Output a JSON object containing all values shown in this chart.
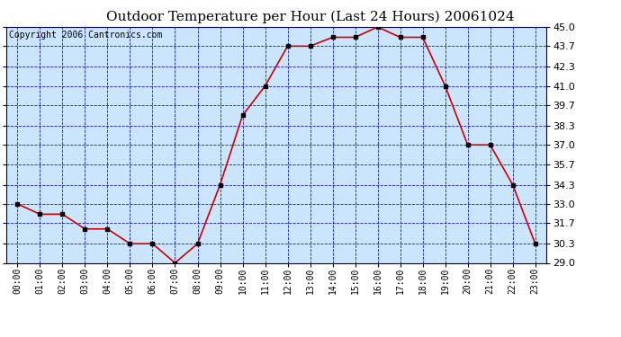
{
  "title": "Outdoor Temperature per Hour (Last 24 Hours) 20061024",
  "copyright": "Copyright 2006 Cantronics.com",
  "x_labels": [
    "00:00",
    "01:00",
    "02:00",
    "03:00",
    "04:00",
    "05:00",
    "06:00",
    "07:00",
    "08:00",
    "09:00",
    "10:00",
    "11:00",
    "12:00",
    "13:00",
    "14:00",
    "15:00",
    "16:00",
    "17:00",
    "18:00",
    "19:00",
    "20:00",
    "21:00",
    "22:00",
    "23:00"
  ],
  "y_values": [
    33.0,
    32.3,
    32.3,
    31.3,
    31.3,
    30.3,
    30.3,
    29.0,
    30.3,
    34.3,
    39.0,
    41.0,
    43.7,
    43.7,
    44.3,
    44.3,
    45.0,
    44.3,
    44.3,
    41.0,
    37.0,
    37.0,
    34.3,
    30.3
  ],
  "ylim": [
    29.0,
    45.0
  ],
  "yticks": [
    29.0,
    30.3,
    31.7,
    33.0,
    34.3,
    35.7,
    37.0,
    38.3,
    39.7,
    41.0,
    42.3,
    43.7,
    45.0
  ],
  "line_color": "#cc0000",
  "marker_color": "#000000",
  "bg_color": "#cce5ff",
  "grid_color": "#0000bb",
  "title_fontsize": 11,
  "copyright_fontsize": 7,
  "tick_fontsize": 8,
  "xtick_fontsize": 7
}
